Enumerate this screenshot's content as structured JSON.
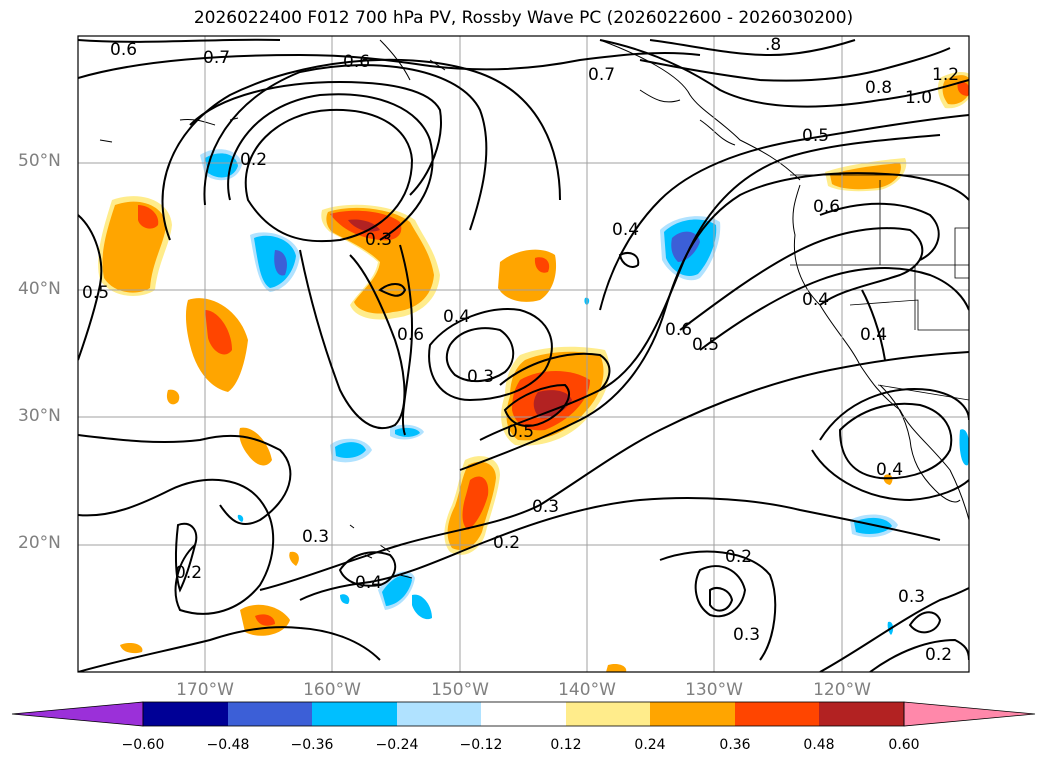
{
  "title": "2026022400 F012 700 hPa PV, Rossby Wave PC (2026022600 - 2026030200)",
  "lat_labels": [
    "50°N",
    "40°N",
    "30°N",
    "20°N"
  ],
  "lon_labels": [
    "170°W",
    "160°W",
    "150°W",
    "140°W",
    "130°W",
    "120°W"
  ],
  "contour_labels": [
    "0.6",
    "0.7",
    "0.6",
    "0.7",
    ".8",
    "0.8",
    "1.0",
    "1.2",
    "0.5",
    "0.2",
    "0.3",
    "0.4",
    "0.6",
    "0.5",
    "0.4",
    "0.6",
    "0.5",
    "0.6",
    "0.4",
    "0.4",
    "0.3",
    "0.5",
    "0.3",
    "0.2",
    "0.4",
    "0.3",
    "0.2",
    "0.2",
    "0.3",
    "0.3",
    "0.2",
    "0.4"
  ],
  "colorbar": {
    "ticks": [
      "−0.60",
      "−0.48",
      "−0.36",
      "−0.24",
      "−0.12",
      "0.12",
      "0.24",
      "0.36",
      "0.48",
      "0.60"
    ],
    "colors": [
      "#9b30d9",
      "#000096",
      "#3c5fd7",
      "#00bfff",
      "#b0e2ff",
      "#ffffff",
      "#ffec8b",
      "#ffa500",
      "#ff4500",
      "#b22222",
      "#ff88aa"
    ]
  },
  "colors": {
    "contour": "#000000",
    "grid": "#a0a0a0",
    "axis_labels": "#808080"
  }
}
